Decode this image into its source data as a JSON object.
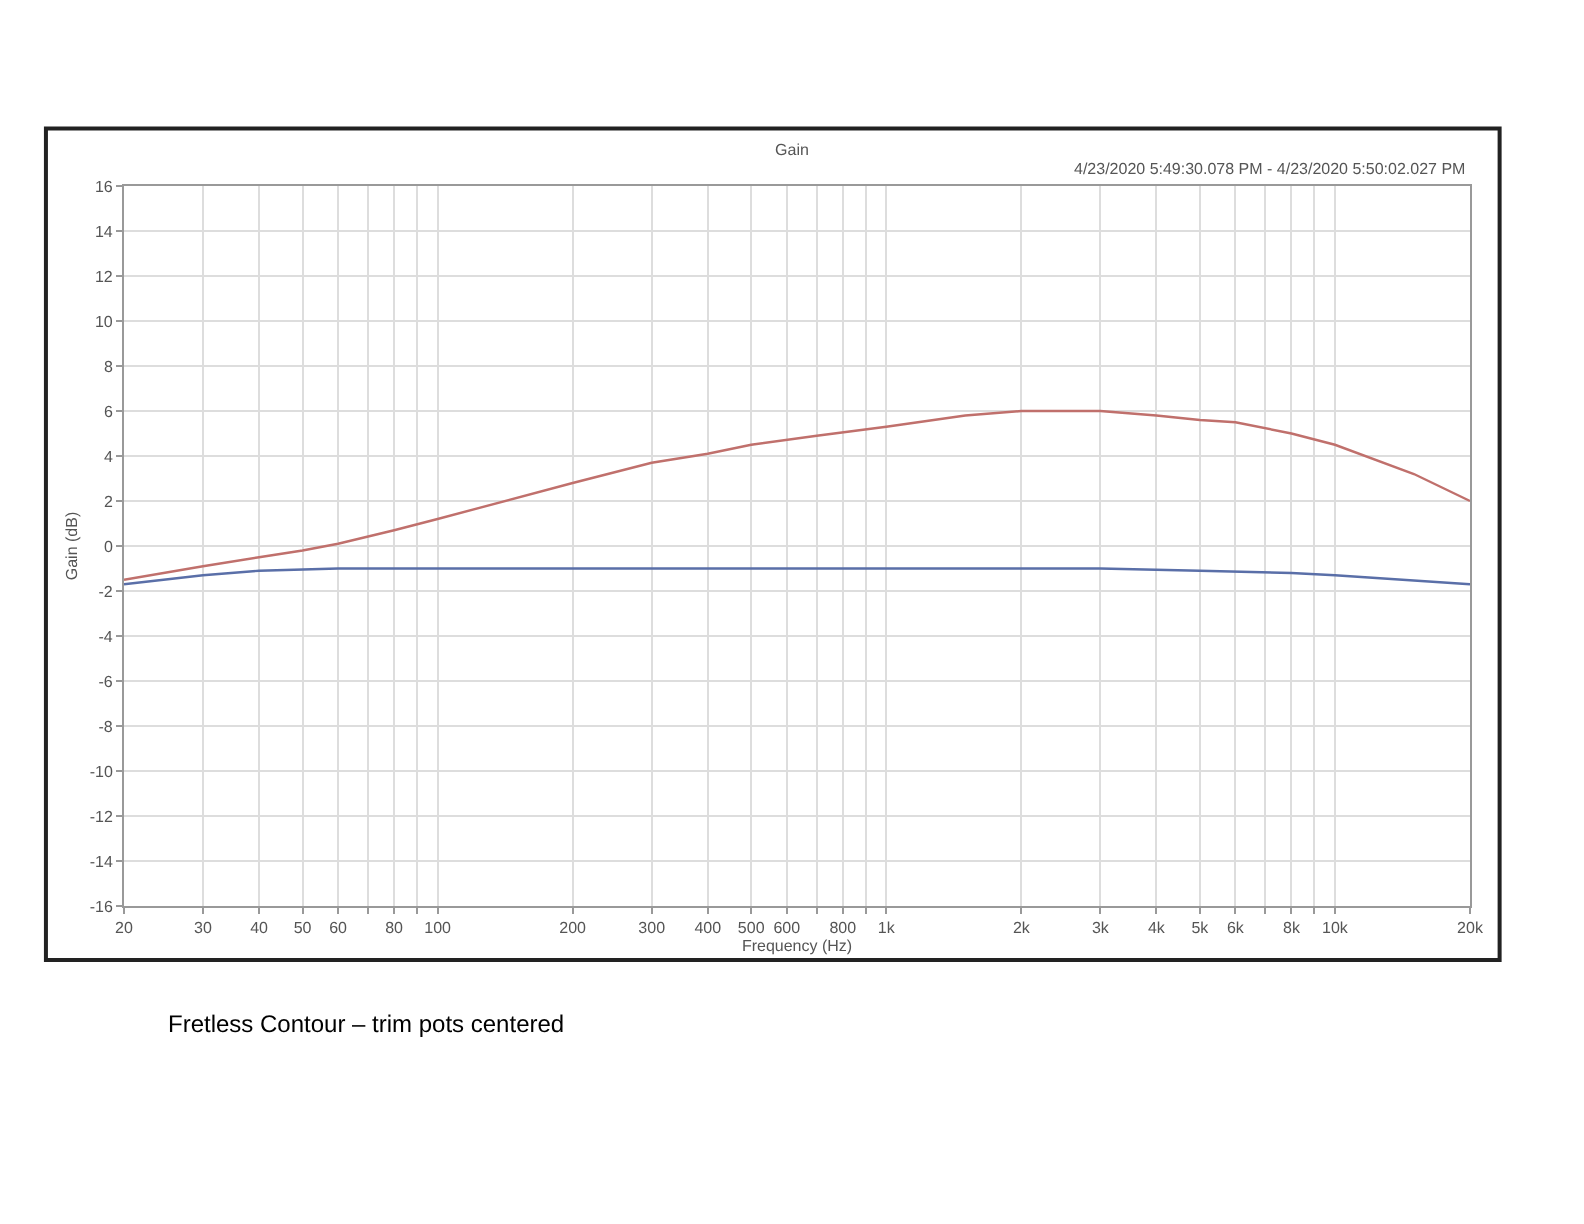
{
  "chart_data": {
    "type": "line",
    "title": "Gain",
    "xlabel": "Frequency (Hz)",
    "ylabel": "Gain (dB)",
    "annotations": [
      "4/23/2020 5:49:30.078 PM - 4/23/2020 5:50:02.027 PM",
      "Fretless Contour – trim pots centered"
    ],
    "log": "x",
    "grid": true,
    "marker": "none",
    "line_style": "solid",
    "xlim": [
      20,
      20000
    ],
    "xticks": [
      20,
      30,
      40,
      50,
      60,
      {
        "value": 70,
        "label": null
      },
      80,
      {
        "value": 90,
        "label": null
      },
      100,
      200,
      300,
      400,
      500,
      600,
      {
        "value": 700,
        "label": null
      },
      800,
      {
        "value": 900,
        "label": null
      },
      {
        "value": 1000,
        "label": "1k"
      },
      {
        "value": 2000,
        "label": "2k"
      },
      {
        "value": 3000,
        "label": "3k"
      },
      {
        "value": 4000,
        "label": "4k"
      },
      {
        "value": 5000,
        "label": "5k"
      },
      {
        "value": 6000,
        "label": "6k"
      },
      {
        "value": 7000,
        "label": null
      },
      {
        "value": 8000,
        "label": "8k"
      },
      {
        "value": 9000,
        "label": null
      },
      {
        "value": 10000,
        "label": "10k"
      },
      {
        "value": 20000,
        "label": "20k"
      }
    ],
    "ylim": [
      -16,
      16
    ],
    "yticks": [
      -16,
      -14,
      -12,
      -10,
      -8,
      -6,
      -4,
      -2,
      0,
      2,
      4,
      6,
      8,
      10,
      12,
      14,
      16
    ],
    "series": [
      {
        "color": "#c0706c",
        "x": [
          20,
          30,
          40,
          50,
          60,
          80,
          100,
          200,
          300,
          400,
          500,
          700,
          1000,
          1500,
          2000,
          3000,
          4000,
          5000,
          6000,
          8000,
          10000,
          15000,
          20000
        ],
        "values": [
          -1.5,
          -0.9,
          -0.5,
          -0.2,
          0.1,
          0.7,
          1.2,
          2.8,
          3.7,
          4.1,
          4.5,
          4.9,
          5.3,
          5.8,
          6.0,
          6.0,
          5.8,
          5.6,
          5.5,
          5.0,
          4.5,
          3.2,
          2.0
        ]
      },
      {
        "color": "#5a6fa8",
        "x": [
          20,
          30,
          40,
          60,
          100,
          1000,
          3000,
          5000,
          8000,
          10000,
          20000
        ],
        "values": [
          -1.7,
          -1.3,
          -1.1,
          -1.0,
          -1.0,
          -1.0,
          -1.0,
          -1.1,
          -1.2,
          -1.3,
          -1.7
        ]
      }
    ]
  }
}
